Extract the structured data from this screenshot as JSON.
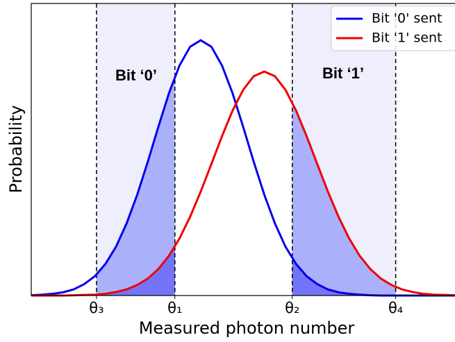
{
  "chart_data": {
    "type": "line",
    "xlabel": "Measured photon number",
    "ylabel": "Probability",
    "x": [
      0,
      0.25,
      0.5,
      0.75,
      1,
      1.25,
      1.5,
      1.75,
      2,
      2.25,
      2.5,
      2.75,
      3,
      3.25,
      3.5,
      3.75,
      4,
      4.25,
      4.5,
      4.75,
      5,
      5.25,
      5.5,
      5.75,
      6,
      6.25,
      6.5,
      6.75,
      7,
      7.25,
      7.5,
      7.75,
      8,
      8.25,
      8.5,
      8.75,
      9,
      9.25,
      9.5,
      9.75,
      10
    ],
    "series": [
      {
        "name": "Bit '0' sent",
        "color": "#0000ee",
        "values": [
          0.001,
          0.003,
          0.006,
          0.011,
          0.021,
          0.039,
          0.066,
          0.108,
          0.167,
          0.247,
          0.345,
          0.458,
          0.578,
          0.693,
          0.788,
          0.852,
          0.874,
          0.852,
          0.788,
          0.693,
          0.578,
          0.458,
          0.345,
          0.247,
          0.167,
          0.108,
          0.066,
          0.039,
          0.021,
          0.011,
          0.006,
          0.003,
          0.001,
          0,
          0,
          0,
          0,
          0,
          0,
          0,
          0
        ]
      },
      {
        "name": "Bit '1' sent",
        "color": "#ee0000",
        "values": [
          0,
          0,
          0,
          0,
          0.001,
          0.002,
          0.003,
          0.006,
          0.012,
          0.021,
          0.036,
          0.058,
          0.091,
          0.136,
          0.196,
          0.27,
          0.356,
          0.45,
          0.545,
          0.633,
          0.704,
          0.751,
          0.767,
          0.751,
          0.704,
          0.633,
          0.545,
          0.45,
          0.356,
          0.27,
          0.196,
          0.136,
          0.091,
          0.058,
          0.036,
          0.021,
          0.012,
          0.006,
          0.003,
          0.002,
          0.001
        ]
      }
    ],
    "xlim": [
      0,
      10
    ],
    "ylim": [
      0,
      1
    ],
    "xticks": [
      {
        "value": 1.54,
        "label": "θ₃"
      },
      {
        "value": 3.39,
        "label": "θ₁"
      },
      {
        "value": 6.16,
        "label": "θ₂"
      },
      {
        "value": 8.6,
        "label": "θ₄"
      }
    ],
    "annotations": [
      "Bit ‘0’",
      "Bit ‘1’"
    ],
    "legend": "upper right"
  }
}
